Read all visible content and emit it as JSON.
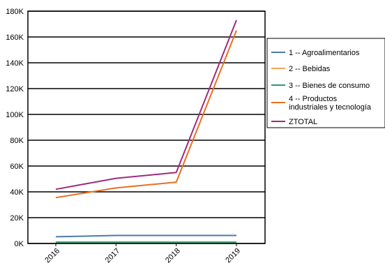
{
  "chart_data": {
    "type": "line",
    "title": "",
    "xlabel": "",
    "ylabel": "",
    "categories": [
      "2016",
      "2017",
      "2018",
      "2019"
    ],
    "ylim": [
      0,
      180000
    ],
    "yticks": [
      0,
      20000,
      40000,
      60000,
      80000,
      100000,
      120000,
      140000,
      160000,
      180000
    ],
    "ytick_labels": [
      "0K",
      "20K",
      "40K",
      "60K",
      "80K",
      "100K",
      "120K",
      "140K",
      "160K",
      "180K"
    ],
    "grid": "horizontal",
    "legend_position": "right",
    "series": [
      {
        "name": "1 -- Agroalimentarios",
        "color": "#4a7ab0",
        "values": [
          5200,
          6200,
          6200,
          6200
        ]
      },
      {
        "name": "2 -- Bebidas",
        "color": "#f2a45a",
        "values": [
          300,
          300,
          300,
          300
        ]
      },
      {
        "name": "3 -- Bienes de consumo",
        "color": "#2e9a6e",
        "values": [
          1000,
          1000,
          1000,
          1000
        ]
      },
      {
        "name": "4 -- Productos industriales y tecnología",
        "color": "#e8701e",
        "values": [
          35500,
          43000,
          47500,
          165000
        ]
      },
      {
        "name": "ZTOTAL",
        "color": "#9e2b7e",
        "values": [
          42000,
          50500,
          55000,
          173000
        ]
      }
    ]
  }
}
